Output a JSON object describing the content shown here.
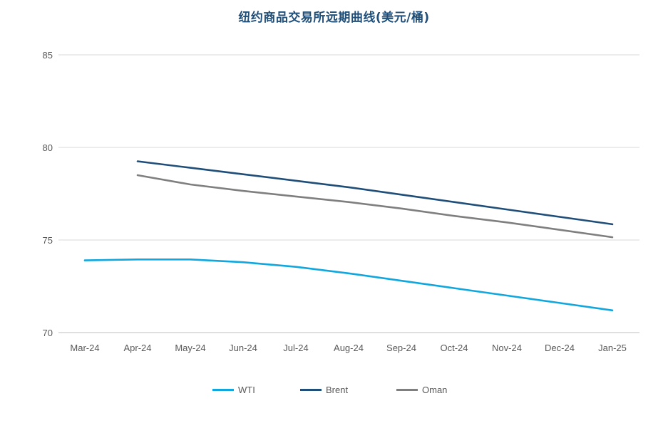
{
  "chart_data": {
    "type": "line",
    "title": "纽约商品交易所远期曲线(美元/桶)",
    "categories": [
      "Mar-24",
      "Apr-24",
      "May-24",
      "Jun-24",
      "Jul-24",
      "Aug-24",
      "Sep-24",
      "Oct-24",
      "Nov-24",
      "Dec-24",
      "Jan-25"
    ],
    "ylim": [
      70,
      85
    ],
    "yticks": [
      70,
      75,
      80,
      85
    ],
    "grid": true,
    "legend_position": "bottom",
    "series": [
      {
        "name": "WTI",
        "color": "#0fa7de",
        "values": [
          73.9,
          73.95,
          73.95,
          73.8,
          73.55,
          73.2,
          72.8,
          72.4,
          72.0,
          71.6,
          71.2
        ]
      },
      {
        "name": "Brent",
        "color": "#1f4e79",
        "values": [
          null,
          79.25,
          78.9,
          78.55,
          78.2,
          77.85,
          77.45,
          77.05,
          76.65,
          76.25,
          75.85
        ]
      },
      {
        "name": "Oman",
        "color": "#7f7f7f",
        "values": [
          null,
          78.5,
          78.0,
          77.65,
          77.35,
          77.05,
          76.7,
          76.3,
          75.95,
          75.55,
          75.15
        ]
      }
    ]
  }
}
